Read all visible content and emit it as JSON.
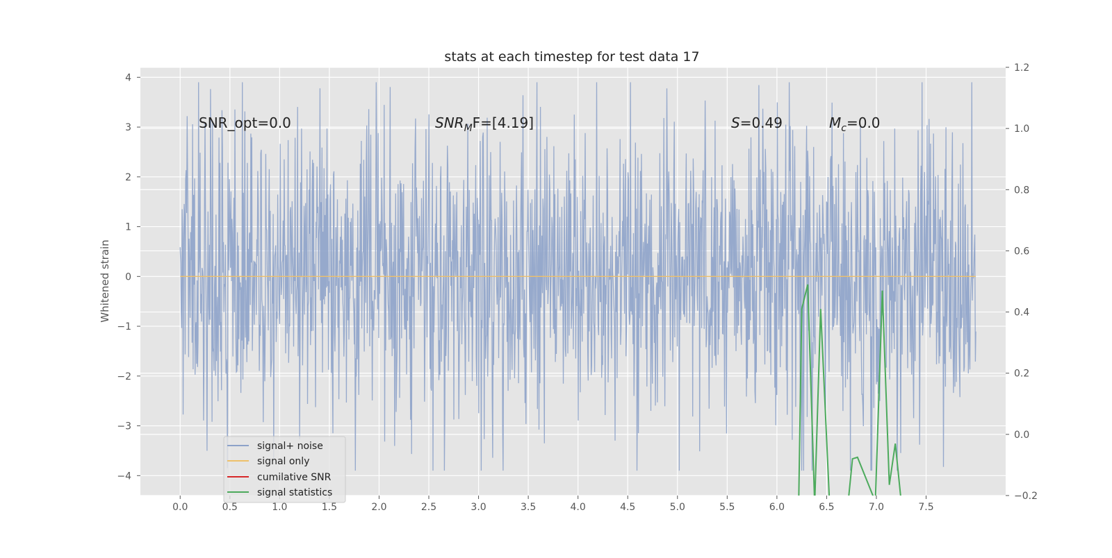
{
  "chart_data": {
    "type": "line",
    "title": "stats at each timestep for test data 17",
    "ylabel": "Whitened strain",
    "xlabel": "",
    "xlim": [
      -0.4,
      8.3
    ],
    "ylim": [
      -4.4,
      4.2
    ],
    "y2lim": [
      -0.2,
      1.2
    ],
    "x_ticks": [
      "0.0",
      "0.5",
      "1.0",
      "1.5",
      "2.0",
      "2.5",
      "3.0",
      "3.5",
      "4.0",
      "4.5",
      "5.0",
      "5.5",
      "6.0",
      "6.5",
      "7.0",
      "7.5"
    ],
    "y_ticks": [
      "4",
      "3",
      "2",
      "1",
      "0",
      "−1",
      "−2",
      "−3",
      "−4"
    ],
    "y2_ticks": [
      "1.2",
      "1.0",
      "0.8",
      "0.6",
      "0.4",
      "0.2",
      "0.0",
      "−0.2"
    ],
    "grid": true,
    "legend_position": "lower-left",
    "annotations": {
      "snr_opt": "SNR_opt=0.0",
      "snr_mf_name": "SNR",
      "snr_mf_sub": "M",
      "snr_mf_rest": "F=[4.19]",
      "s_name": "S",
      "s_rest": "=0.49",
      "mc_name": "M",
      "mc_sub": "c",
      "mc_rest": "=0.0"
    },
    "series": [
      {
        "name": "signal+ noise",
        "color": "#8da2c9",
        "axis": "left",
        "x_range": [
          0.0,
          8.0
        ],
        "sample_count": 1600,
        "envelope": {
          "min": -3.9,
          "max": 3.9,
          "typical_amplitude": 1.6
        }
      },
      {
        "name": "signal only",
        "color": "#eec06a",
        "axis": "left",
        "x": [
          0.0,
          8.0
        ],
        "y": [
          0.0,
          0.0
        ]
      },
      {
        "name": "cumilative SNR",
        "color": "#d62728",
        "axis": "right",
        "x": [],
        "y": []
      },
      {
        "name": "signal statistics",
        "color": "#4caa5c",
        "axis": "right",
        "x": [
          6.22,
          6.25,
          6.31,
          6.38,
          6.44,
          6.53,
          6.72,
          6.76,
          6.81,
          6.99,
          7.06,
          7.13,
          7.19,
          7.25
        ],
        "y": [
          -0.21,
          0.41,
          0.49,
          -0.23,
          0.41,
          -0.23,
          -0.21,
          -0.08,
          -0.075,
          -0.22,
          0.47,
          -0.165,
          -0.03,
          -0.22
        ]
      }
    ]
  }
}
